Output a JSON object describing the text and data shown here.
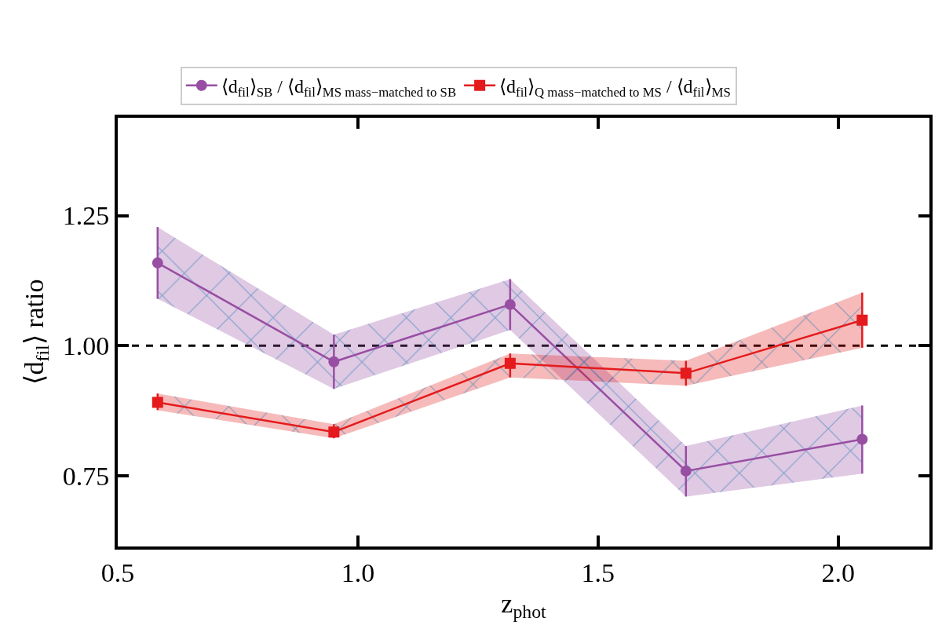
{
  "chart_data": {
    "type": "line",
    "xlabel": "z$_{phot}$",
    "ylabel": "⟨d$_{fil}$⟩ ratio",
    "x": [
      0.583,
      0.95,
      1.317,
      1.683,
      2.05
    ],
    "series": [
      {
        "name": "⟨d$_{fil}$⟩$_{SB}$ / ⟨d$_{fil}$⟩$_{MS mass−matched to SB}$",
        "color": "#984ea3",
        "marker": "circle",
        "values": [
          1.159,
          0.969,
          1.079,
          0.759,
          0.82
        ],
        "errors": [
          [
            1.09,
            1.228
          ],
          [
            0.917,
            1.021
          ],
          [
            1.03,
            1.128
          ],
          [
            0.71,
            0.807
          ],
          [
            0.754,
            0.885
          ]
        ],
        "lower": [
          1.09,
          0.917,
          1.03,
          0.71,
          0.754
        ],
        "upper": [
          1.228,
          1.021,
          1.128,
          0.807,
          0.885
        ]
      },
      {
        "name": "⟨d$_{fil}$⟩$_{Q mass−matched to MS}$ / ⟨d$_{fil}$⟩$_{MS}$",
        "color": "#e41a1c",
        "marker": "square",
        "values": [
          0.891,
          0.834,
          0.966,
          0.947,
          1.049
        ],
        "errors": [
          [
            0.876,
            0.908
          ],
          [
            0.822,
            0.849
          ],
          [
            0.939,
            0.985
          ],
          [
            0.923,
            0.971
          ],
          [
            0.996,
            1.102
          ]
        ],
        "lower": [
          0.876,
          0.822,
          0.939,
          0.923,
          0.996
        ],
        "upper": [
          0.908,
          0.849,
          0.985,
          0.971,
          1.102
        ]
      }
    ],
    "xlim": [
      0.5,
      2.19
    ],
    "xticks": [
      {
        "value": 0.5,
        "label": "0.5"
      },
      {
        "value": 1.0,
        "label": "1.0"
      },
      {
        "value": 1.5,
        "label": "1.5"
      },
      {
        "value": 2.0,
        "label": "2.0"
      }
    ],
    "ylim": [
      0.614,
      1.438
    ],
    "yticks": [
      0.75,
      {
        "value": 1.0,
        "label": "1.00"
      },
      1.25
    ],
    "ref_lines": [
      {
        "axis": "y",
        "value": 1.0,
        "color": "#000000",
        "line_style": "dashed"
      }
    ],
    "grid": false,
    "legend": "top",
    "line_style": "solid"
  }
}
